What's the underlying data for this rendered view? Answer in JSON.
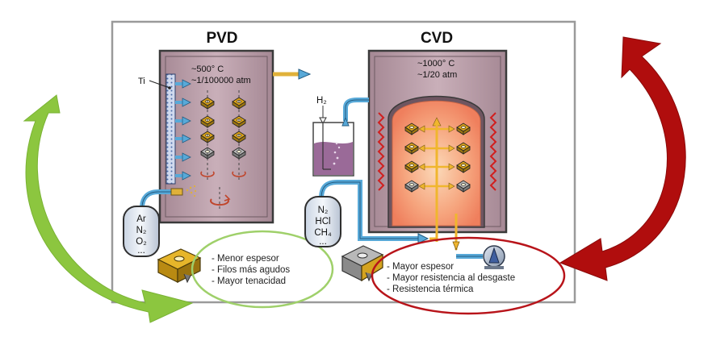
{
  "pvd": {
    "title": "PVD",
    "temperature": "~500° C",
    "pressure": "~1/100000 atm",
    "target_label": "Ti",
    "gases": [
      "Ar",
      "N₂",
      "O₂",
      "..."
    ],
    "benefits": [
      "- Menor espesor",
      "- Filos más agudos",
      "- Mayor tenacidad"
    ]
  },
  "cvd": {
    "title": "CVD",
    "temperature": "~1000° C",
    "pressure": "~1/20 atm",
    "h2_label": "H₂",
    "gases": [
      "N₂",
      "HCl",
      "CH₄",
      "..."
    ],
    "benefits": [
      "- Mayor espesor",
      "- Mayor resistencia al desgaste",
      "- Resistencia térmica"
    ]
  },
  "colors": {
    "green_arrow": "#8cc63f",
    "red_arrow": "#b00d0d",
    "green_ellipse": "#9fd06a",
    "red_ellipse": "#b8141a",
    "chamber_fill": "#b89aa6",
    "cvd_glow": "#f7a57c",
    "insert_gold": "#d9a21a",
    "insert_grey": "#9a9a9a",
    "flow_arrow": "#58a9d8",
    "cvd_arrow": "#f0b62e"
  }
}
